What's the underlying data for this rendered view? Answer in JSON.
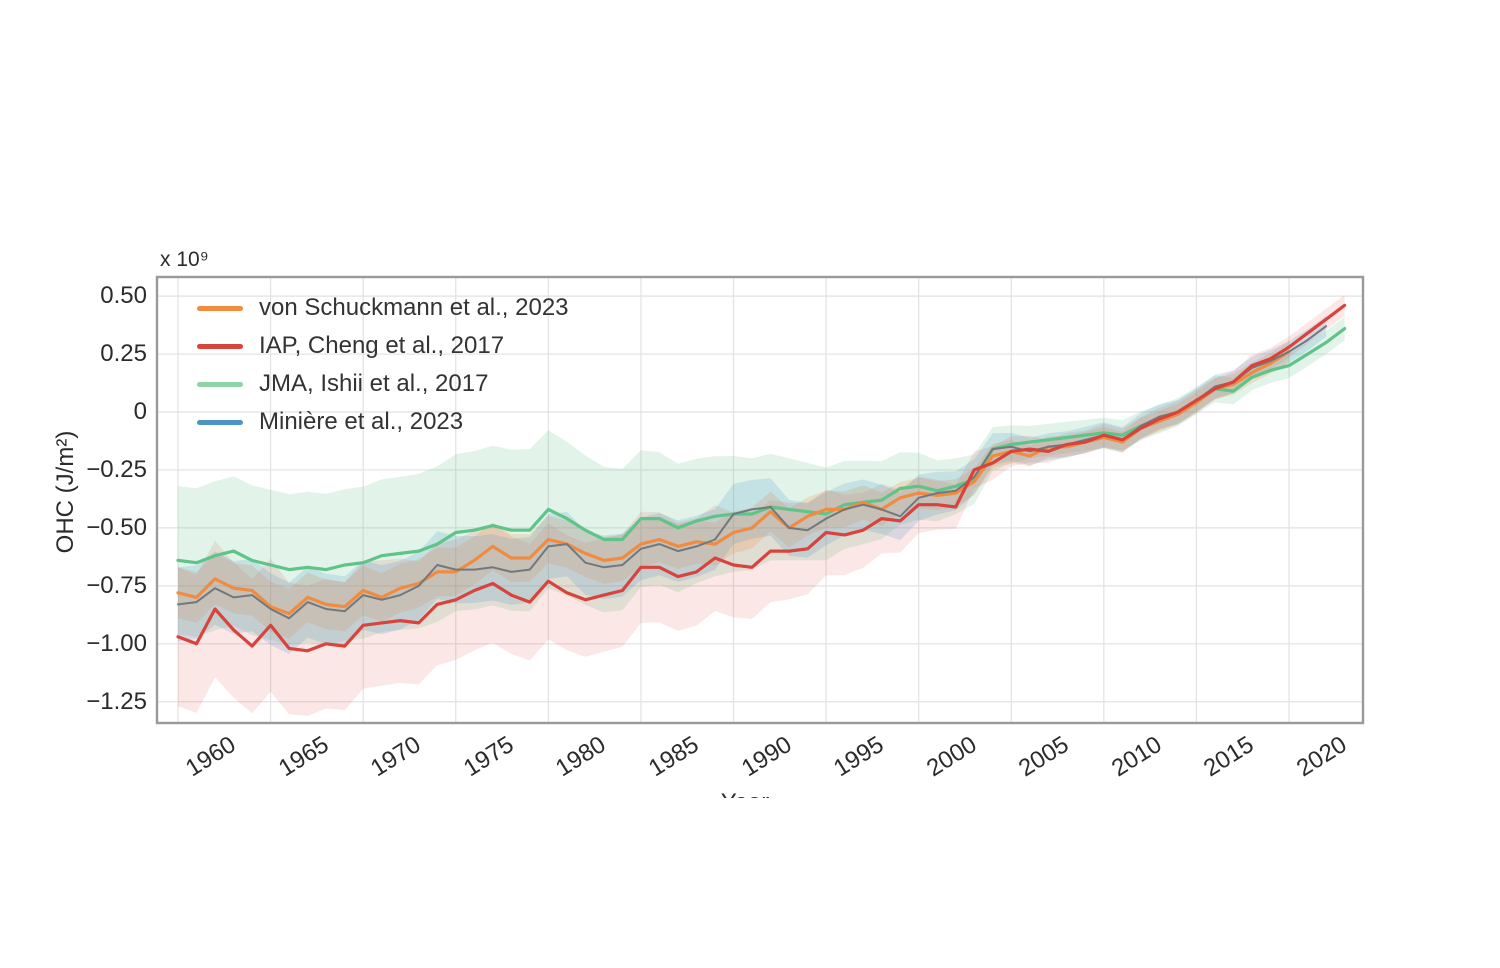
{
  "chart_data": {
    "type": "line",
    "title": "",
    "xlabel": "Year",
    "ylabel": "OHC (J/m²)",
    "offset_text": "x 10⁹",
    "grid": true,
    "legend_position": "top-left",
    "xlim": [
      1959,
      2024
    ],
    "ylim": [
      -1.34,
      0.58
    ],
    "x_ticks": [
      1960,
      1965,
      1970,
      1975,
      1980,
      1985,
      1990,
      1995,
      2000,
      2005,
      2010,
      2015,
      2020
    ],
    "x_tick_labels": [
      "1960",
      "1965",
      "1970",
      "1975",
      "1980",
      "1985",
      "1990",
      "1995",
      "2000",
      "2005",
      "2010",
      "2015",
      "2020"
    ],
    "y_ticks": [
      0.5,
      0.25,
      0,
      -0.25,
      -0.5,
      -0.75,
      -1.0,
      -1.25
    ],
    "y_tick_labels": [
      "0.50",
      "0.25",
      "0",
      "−0.25",
      "−0.50",
      "−0.75",
      "−1.00",
      "−1.25"
    ],
    "frame_color": "#9a9a9a",
    "gridline_color": "#e2e2e2",
    "series": [
      {
        "name": "von Schuckmann et al., 2023",
        "color": "#f08b3f",
        "band_opacity": 0.22,
        "start_year": 1960,
        "end_year": 2020,
        "values": [
          -0.78,
          -0.8,
          -0.72,
          -0.76,
          -0.77,
          -0.84,
          -0.87,
          -0.8,
          -0.83,
          -0.84,
          -0.77,
          -0.8,
          -0.76,
          -0.74,
          -0.69,
          -0.69,
          -0.64,
          -0.58,
          -0.63,
          -0.63,
          -0.55,
          -0.57,
          -0.61,
          -0.64,
          -0.63,
          -0.57,
          -0.55,
          -0.58,
          -0.56,
          -0.57,
          -0.52,
          -0.5,
          -0.43,
          -0.5,
          -0.45,
          -0.42,
          -0.42,
          -0.39,
          -0.42,
          -0.37,
          -0.35,
          -0.36,
          -0.35,
          -0.3,
          -0.19,
          -0.17,
          -0.19,
          -0.15,
          -0.15,
          -0.13,
          -0.11,
          -0.13,
          -0.07,
          -0.04,
          -0.01,
          0.04,
          0.1,
          0.12,
          0.17,
          0.21,
          0.26
        ],
        "band_halfwidth_points": [
          [
            1960,
            0.11
          ],
          [
            1985,
            0.1
          ],
          [
            1995,
            0.08
          ],
          [
            2002,
            0.06
          ],
          [
            2006,
            0.045
          ],
          [
            2020,
            0.045
          ]
        ]
      },
      {
        "name": "IAP, Cheng et al., 2017",
        "color": "#d8433c",
        "band_opacity": 0.13,
        "start_year": 1960,
        "end_year": 2023,
        "values": [
          -0.97,
          -1.0,
          -0.85,
          -0.94,
          -1.01,
          -0.92,
          -1.02,
          -1.03,
          -1.0,
          -1.01,
          -0.92,
          -0.91,
          -0.9,
          -0.91,
          -0.83,
          -0.81,
          -0.77,
          -0.74,
          -0.79,
          -0.82,
          -0.73,
          -0.78,
          -0.81,
          -0.79,
          -0.77,
          -0.67,
          -0.67,
          -0.71,
          -0.69,
          -0.63,
          -0.66,
          -0.67,
          -0.6,
          -0.6,
          -0.59,
          -0.52,
          -0.53,
          -0.51,
          -0.46,
          -0.47,
          -0.4,
          -0.4,
          -0.41,
          -0.25,
          -0.22,
          -0.17,
          -0.16,
          -0.17,
          -0.14,
          -0.13,
          -0.1,
          -0.12,
          -0.07,
          -0.03,
          0.0,
          0.05,
          0.1,
          0.13,
          0.2,
          0.23,
          0.28,
          0.34,
          0.4,
          0.46
        ],
        "band_halfwidth_points": [
          [
            1960,
            0.3
          ],
          [
            1975,
            0.26
          ],
          [
            1985,
            0.24
          ],
          [
            1992,
            0.22
          ],
          [
            1998,
            0.15
          ],
          [
            2003,
            0.08
          ],
          [
            2007,
            0.05
          ],
          [
            2023,
            0.045
          ]
        ]
      },
      {
        "name": "JMA, Ishii et al., 2017",
        "color": "#5ec488",
        "legend_color": "#8fd3a8",
        "band_opacity": 0.18,
        "start_year": 1960,
        "end_year": 2023,
        "values": [
          -0.64,
          -0.65,
          -0.62,
          -0.6,
          -0.64,
          -0.66,
          -0.68,
          -0.67,
          -0.68,
          -0.66,
          -0.65,
          -0.62,
          -0.61,
          -0.6,
          -0.57,
          -0.52,
          -0.51,
          -0.49,
          -0.51,
          -0.51,
          -0.42,
          -0.46,
          -0.51,
          -0.55,
          -0.55,
          -0.46,
          -0.46,
          -0.5,
          -0.47,
          -0.45,
          -0.44,
          -0.44,
          -0.41,
          -0.42,
          -0.43,
          -0.44,
          -0.4,
          -0.39,
          -0.38,
          -0.33,
          -0.32,
          -0.34,
          -0.32,
          -0.29,
          -0.16,
          -0.14,
          -0.13,
          -0.12,
          -0.11,
          -0.1,
          -0.09,
          -0.1,
          -0.06,
          -0.03,
          0.0,
          0.05,
          0.1,
          0.09,
          0.15,
          0.18,
          0.2,
          0.25,
          0.3,
          0.36
        ],
        "band_halfwidth_points": [
          [
            1960,
            0.32
          ],
          [
            1972,
            0.33
          ],
          [
            1979,
            0.35
          ],
          [
            1990,
            0.25
          ],
          [
            1997,
            0.18
          ],
          [
            2002,
            0.12
          ],
          [
            2006,
            0.07
          ],
          [
            2023,
            0.05
          ]
        ]
      },
      {
        "name": "Minière et al., 2023",
        "color": "#4e94c6",
        "line_color": "#70797f",
        "band_opacity": 0.2,
        "start_year": 1960,
        "end_year": 2022,
        "values": [
          -0.83,
          -0.82,
          -0.76,
          -0.8,
          -0.79,
          -0.85,
          -0.89,
          -0.82,
          -0.85,
          -0.86,
          -0.79,
          -0.81,
          -0.79,
          -0.75,
          -0.66,
          -0.68,
          -0.68,
          -0.67,
          -0.69,
          -0.68,
          -0.58,
          -0.57,
          -0.65,
          -0.67,
          -0.66,
          -0.59,
          -0.57,
          -0.6,
          -0.58,
          -0.55,
          -0.44,
          -0.42,
          -0.41,
          -0.5,
          -0.51,
          -0.46,
          -0.42,
          -0.4,
          -0.42,
          -0.45,
          -0.37,
          -0.35,
          -0.34,
          -0.28,
          -0.16,
          -0.15,
          -0.17,
          -0.15,
          -0.14,
          -0.12,
          -0.1,
          -0.12,
          -0.06,
          -0.02,
          0.0,
          0.05,
          0.11,
          0.13,
          0.19,
          0.22,
          0.26,
          0.31,
          0.37
        ],
        "band_halfwidth_points": [
          [
            1960,
            0.16
          ],
          [
            1990,
            0.13
          ],
          [
            2000,
            0.1
          ],
          [
            2005,
            0.06
          ],
          [
            2022,
            0.045
          ]
        ]
      }
    ]
  }
}
